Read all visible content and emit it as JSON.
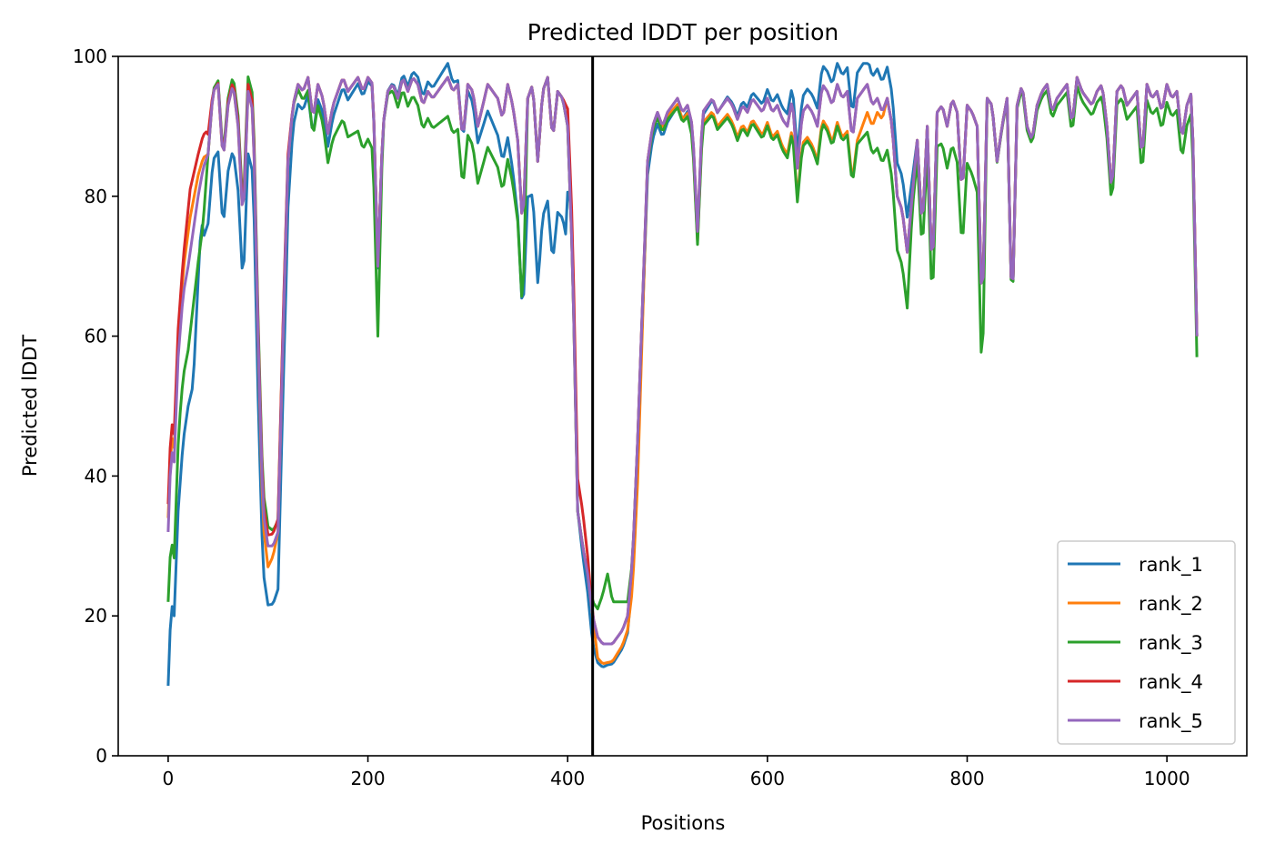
{
  "chart_data": {
    "type": "line",
    "title": "Predicted lDDT per position",
    "xlabel": "Positions",
    "ylabel": "Predicted lDDT",
    "xlim": [
      -50,
      1080
    ],
    "ylim": [
      0,
      100
    ],
    "xticks": [
      0,
      200,
      400,
      600,
      800,
      1000
    ],
    "yticks": [
      0,
      20,
      40,
      60,
      80,
      100
    ],
    "grid": false,
    "legend_position": "lower-right",
    "vline_x": 425,
    "profile_x": [
      0,
      3,
      6,
      10,
      15,
      20,
      25,
      30,
      35,
      40,
      45,
      50,
      55,
      60,
      65,
      70,
      75,
      80,
      85,
      90,
      95,
      100,
      105,
      110,
      115,
      120,
      125,
      130,
      135,
      140,
      145,
      150,
      155,
      160,
      165,
      170,
      175,
      180,
      185,
      190,
      195,
      200,
      205,
      210,
      215,
      220,
      225,
      230,
      235,
      240,
      245,
      250,
      255,
      260,
      265,
      270,
      275,
      280,
      285,
      290,
      295,
      300,
      305,
      310,
      315,
      320,
      325,
      330,
      335,
      340,
      345,
      350,
      355,
      360,
      365,
      370,
      375,
      380,
      385,
      390,
      395,
      400,
      405,
      410,
      415,
      420,
      425,
      430,
      435,
      440,
      445,
      450,
      455,
      460,
      465,
      470,
      475,
      480,
      485,
      490,
      495,
      500,
      505,
      510,
      515,
      520,
      525,
      530,
      535,
      540,
      545,
      550,
      555,
      560,
      565,
      570,
      575,
      580,
      585,
      590,
      595,
      600,
      605,
      610,
      615,
      620,
      625,
      630,
      635,
      640,
      645,
      650,
      655,
      660,
      665,
      670,
      675,
      680,
      685,
      690,
      695,
      700,
      705,
      710,
      715,
      720,
      725,
      730,
      735,
      740,
      745,
      750,
      755,
      760,
      765,
      770,
      775,
      780,
      785,
      790,
      795,
      800,
      805,
      810,
      815,
      820,
      825,
      830,
      835,
      840,
      845,
      850,
      855,
      860,
      865,
      870,
      875,
      880,
      885,
      890,
      895,
      900,
      905,
      910,
      915,
      920,
      925,
      930,
      935,
      940,
      945,
      950,
      955,
      960,
      965,
      970,
      975,
      980,
      985,
      990,
      995,
      1000,
      1005,
      1010,
      1015,
      1020,
      1025,
      1030
    ],
    "profile_y": [
      30,
      42,
      40,
      55,
      65,
      70,
      75,
      80,
      84,
      86,
      95,
      96,
      85,
      93,
      96,
      90,
      76,
      95,
      92,
      60,
      35,
      30,
      30,
      32,
      60,
      85,
      93,
      96,
      95,
      97,
      91,
      96,
      94,
      89,
      93,
      95,
      97,
      95,
      96,
      97,
      95,
      97,
      96,
      70,
      90,
      95,
      96,
      94,
      97,
      95,
      97,
      96,
      93,
      95,
      94,
      95,
      96,
      97,
      95,
      96,
      88,
      96,
      95,
      90,
      93,
      96,
      95,
      94,
      91,
      96,
      93,
      88,
      75,
      94,
      96,
      85,
      95,
      97,
      88,
      95,
      94,
      90,
      70,
      35,
      30,
      26,
      20,
      17,
      16,
      16,
      16,
      17,
      18,
      20,
      28,
      45,
      65,
      85,
      90,
      92,
      90,
      92,
      93,
      94,
      92,
      93,
      90,
      75,
      92,
      93,
      94,
      92,
      93,
      94,
      93,
      91,
      93,
      92,
      94,
      93,
      92,
      94,
      92,
      93,
      91,
      90,
      94,
      84,
      92,
      93,
      92,
      90,
      96,
      95,
      93,
      96,
      94,
      95,
      88,
      94,
      95,
      96,
      93,
      94,
      92,
      94,
      90,
      80,
      78,
      72,
      80,
      88,
      75,
      90,
      68,
      92,
      93,
      90,
      94,
      92,
      80,
      93,
      92,
      90,
      62,
      94,
      93,
      85,
      90,
      94,
      62,
      93,
      96,
      90,
      88,
      93,
      95,
      96,
      92,
      94,
      95,
      96,
      90,
      97,
      95,
      94,
      93,
      95,
      96,
      90,
      80,
      95,
      96,
      93,
      94,
      95,
      85,
      96,
      94,
      95,
      92,
      96,
      94,
      95,
      88,
      93,
      95,
      60
    ],
    "series": [
      {
        "name": "rank_1",
        "color": "#1f77b4",
        "offset": [
          [
            20,
            -20
          ],
          [
            25,
            -22
          ],
          [
            27,
            -18
          ],
          [
            33,
            -6
          ],
          [
            36,
            -10
          ],
          [
            118,
            -8
          ],
          [
            125,
            -3
          ],
          [
            280,
            2
          ],
          [
            335,
            -6
          ],
          [
            372,
            -18
          ],
          [
            398,
            -17
          ],
          [
            403,
            2
          ],
          [
            425,
            -4
          ],
          [
            440,
            -3
          ],
          [
            740,
            5
          ],
          [
            750,
            0
          ]
        ]
      },
      {
        "name": "rank_2",
        "color": "#ff7f0e",
        "offset": [
          [
            12,
            4
          ],
          [
            22,
            5
          ],
          [
            30,
            3
          ],
          [
            40,
            0
          ],
          [
            88,
            0
          ],
          [
            100,
            -3
          ],
          [
            110,
            0
          ],
          [
            425,
            0
          ],
          [
            430,
            -3
          ],
          [
            460,
            -2
          ],
          [
            470,
            -6
          ],
          [
            480,
            0
          ],
          [
            690,
            -6
          ],
          [
            720,
            0
          ]
        ]
      },
      {
        "name": "rank_3",
        "color": "#2ca02c",
        "offset": [
          [
            0,
            -8
          ],
          [
            5,
            -12
          ],
          [
            12,
            -10
          ],
          [
            20,
            -12
          ],
          [
            28,
            -10
          ],
          [
            35,
            -8
          ],
          [
            40,
            0
          ],
          [
            98,
            3
          ],
          [
            210,
            -10
          ],
          [
            215,
            0
          ],
          [
            355,
            -12
          ],
          [
            360,
            0
          ],
          [
            420,
            0
          ],
          [
            430,
            4
          ],
          [
            440,
            10
          ],
          [
            445,
            6
          ],
          [
            455,
            4
          ],
          [
            465,
            0
          ],
          [
            740,
            -8
          ],
          [
            745,
            -2
          ],
          [
            815,
            -10
          ],
          [
            820,
            0
          ],
          [
            1030,
            -3
          ]
        ]
      },
      {
        "name": "rank_4",
        "color": "#d62728",
        "offset": [
          [
            15,
            6
          ],
          [
            22,
            9
          ],
          [
            30,
            6
          ],
          [
            38,
            4
          ],
          [
            45,
            0
          ],
          [
            115,
            2
          ],
          [
            125,
            0
          ],
          [
            395,
            0
          ],
          [
            403,
            4
          ],
          [
            415,
            5
          ],
          [
            425,
            0
          ]
        ]
      },
      {
        "name": "rank_5",
        "color": "#9467bd",
        "offset": [
          [
            0,
            2
          ],
          [
            10,
            2
          ],
          [
            20,
            0
          ],
          [
            1030,
            0
          ]
        ]
      }
    ]
  }
}
